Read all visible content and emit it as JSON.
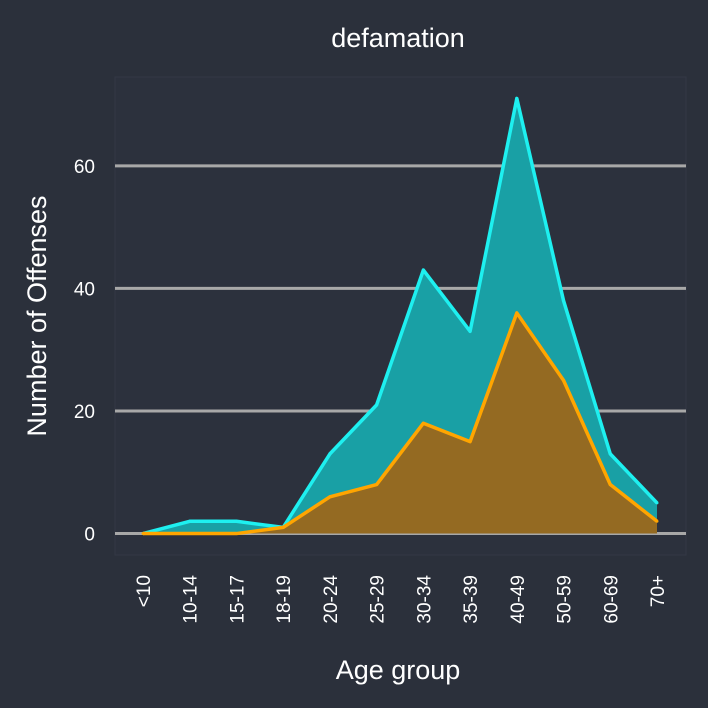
{
  "chart_data": {
    "type": "area",
    "title": "defamation",
    "xlabel": "Age group",
    "ylabel": "Number of Offenses",
    "categories": [
      "<10",
      "10-14",
      "15-17",
      "18-19",
      "20-24",
      "25-29",
      "30-34",
      "35-39",
      "40-49",
      "50-59",
      "60-69",
      "70+"
    ],
    "series": [
      {
        "values": [
          0,
          2,
          2,
          1,
          13,
          21,
          43,
          33,
          71,
          38,
          13,
          5
        ],
        "line_color": "#1ef0f0",
        "fill_color": "#19a0a5"
      },
      {
        "values": [
          0,
          0,
          0,
          1,
          6,
          8,
          18,
          15,
          36,
          25,
          8,
          2
        ],
        "line_color": "#ffa500",
        "fill_color": "#946a22"
      }
    ],
    "ylim": [
      -3.5,
      74.5
    ],
    "yticks": [
      0,
      20,
      40,
      60
    ],
    "grid": "horizontal-major",
    "legend": "none",
    "colors": {
      "background": "#2b303b",
      "panel": "#2c313d",
      "grid": "#a8a8a8",
      "text": "#ffffff"
    }
  }
}
